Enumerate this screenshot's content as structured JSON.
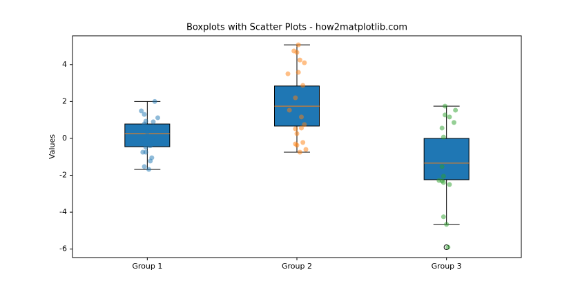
{
  "chart_data": {
    "type": "boxplot",
    "title": "Boxplots with Scatter Plots - how2matplotlib.com",
    "y_label": "Values",
    "categories": [
      "Group 1",
      "Group 2",
      "Group 3"
    ],
    "box_color": "#1f77b4",
    "median_color": "#ff7f0e",
    "boxes": [
      {
        "whislo": -1.68,
        "q1": -0.45,
        "med": 0.26,
        "q3": 0.78,
        "whishi": 2.0,
        "fliers": []
      },
      {
        "whislo": -0.75,
        "q1": 0.67,
        "med": 1.75,
        "q3": 2.84,
        "whishi": 5.07,
        "fliers": []
      },
      {
        "whislo": -4.66,
        "q1": -2.24,
        "med": -1.34,
        "q3": 0.0,
        "whishi": 1.75,
        "fliers": [
          -5.9
        ]
      }
    ],
    "series": [
      {
        "color": "#1f77b4",
        "x": [
          1.05,
          0.96,
          0.98,
          1.07,
          0.99,
          1.04,
          0.98,
          1.02,
          1.0,
          0.98,
          1.03,
          0.96,
          1.02,
          0.99,
          0.97,
          0.99,
          1.03,
          1.02,
          0.98,
          1.01
        ],
        "values": [
          2.0,
          1.49,
          1.3,
          1.12,
          0.93,
          0.9,
          0.78,
          0.55,
          0.34,
          0.12,
          -0.07,
          -0.3,
          -0.4,
          -0.48,
          -0.75,
          -0.75,
          -1.05,
          -1.23,
          -1.53,
          -1.68
        ]
      },
      {
        "color": "#ff7f0e",
        "x": [
          2.01,
          1.98,
          2.0,
          2.02,
          2.05,
          1.94,
          2.01,
          2.04,
          1.99,
          1.95,
          2.03,
          2.05,
          1.99,
          2.03,
          2.0,
          1.99,
          2.04,
          2.0,
          2.06,
          2.02
        ],
        "values": [
          5.07,
          4.74,
          4.66,
          4.25,
          4.1,
          3.5,
          3.58,
          2.87,
          2.2,
          1.53,
          1.16,
          0.75,
          0.52,
          0.56,
          0.26,
          -0.3,
          -0.22,
          -0.37,
          -0.6,
          -0.75
        ]
      },
      {
        "color": "#2ca02c",
        "x": [
          2.99,
          3.06,
          2.99,
          3.02,
          3.05,
          2.97,
          2.98,
          2.97,
          2.95,
          2.97,
          2.98,
          3.02,
          2.98,
          2.98,
          3.0,
          3.01
        ],
        "values": [
          1.75,
          1.53,
          1.27,
          1.16,
          0.86,
          0.56,
          0.07,
          -1.53,
          -2.28,
          -2.31,
          -2.39,
          -2.5,
          -2.05,
          -4.25,
          -4.66,
          -5.9
        ]
      }
    ],
    "xlim": [
      0.5,
      3.5
    ],
    "ylim": [
      -6.46,
      5.56
    ],
    "yticks": [
      -6,
      -4,
      -2,
      0,
      2,
      4
    ]
  }
}
